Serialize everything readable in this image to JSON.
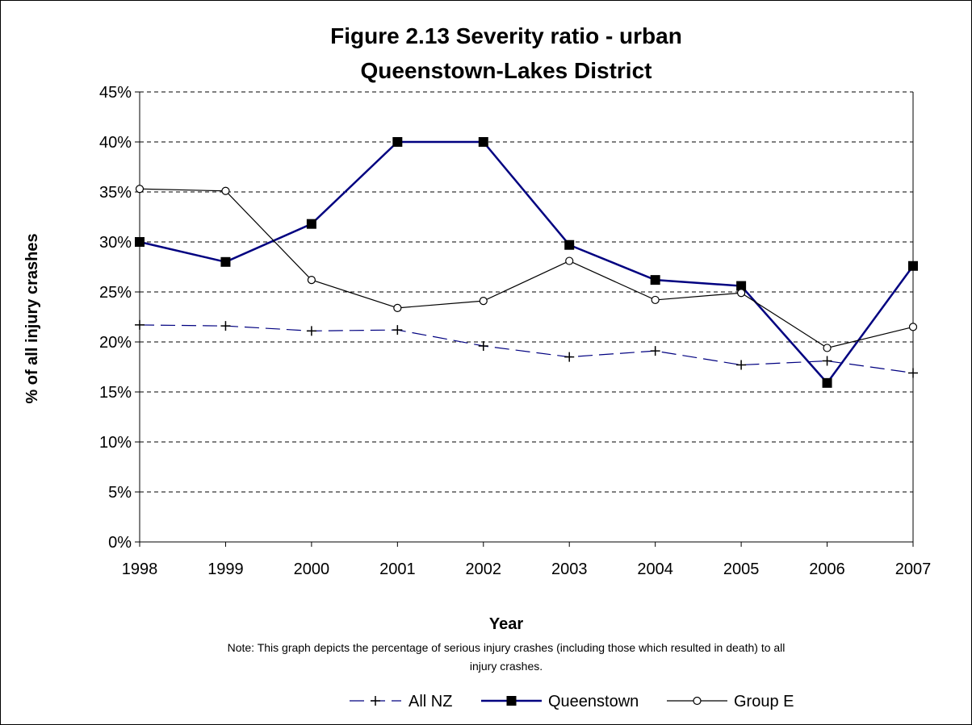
{
  "chart_data": {
    "type": "line",
    "title": [
      "Figure 2.13 Severity ratio - urban",
      "Queenstown-Lakes District"
    ],
    "xlabel": "Year",
    "ylabel": "% of all injury crashes",
    "x": [
      "1998",
      "1999",
      "2000",
      "2001",
      "2002",
      "2003",
      "2004",
      "2005",
      "2006",
      "2007"
    ],
    "ylim": [
      0,
      45
    ],
    "yticks": [
      "0%",
      "5%",
      "10%",
      "15%",
      "20%",
      "25%",
      "30%",
      "35%",
      "40%",
      "45%"
    ],
    "ytick_values": [
      0,
      5,
      10,
      15,
      20,
      25,
      30,
      35,
      40,
      45
    ],
    "grid": true,
    "legend_position": "bottom",
    "note": [
      "Note: This graph depicts the percentage of serious injury crashes (including those which resulted in death) to all",
      "injury crashes."
    ],
    "series": [
      {
        "name": "All NZ",
        "color": "#000080",
        "marker": "plus",
        "dash": "dashed",
        "values": [
          21.7,
          21.6,
          21.1,
          21.2,
          19.6,
          18.5,
          19.1,
          17.7,
          18.1,
          16.9
        ]
      },
      {
        "name": "Queenstown",
        "color": "#000080",
        "marker": "square",
        "dash": "solid",
        "values": [
          30.0,
          28.0,
          31.8,
          40.0,
          40.0,
          29.7,
          26.2,
          25.6,
          15.9,
          27.6
        ]
      },
      {
        "name": "Group E",
        "color": "#000000",
        "marker": "circle",
        "dash": "solid",
        "values": [
          35.3,
          35.1,
          26.2,
          23.4,
          24.1,
          28.1,
          24.2,
          24.9,
          19.4,
          21.5
        ]
      }
    ]
  }
}
